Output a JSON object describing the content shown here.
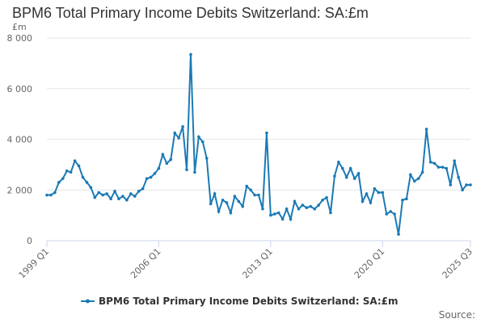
{
  "chart_data": {
    "type": "line",
    "title": "BPM6 Total Primary Income Debits Switzerland: SA:£m",
    "ylabel": "£m",
    "xlabel": "",
    "ylim": [
      0,
      8000
    ],
    "yticks": [
      0,
      2000,
      4000,
      6000,
      8000
    ],
    "ytick_labels": [
      "0",
      "2 000",
      "4 000",
      "6 000",
      "8 000"
    ],
    "xtick_labels": [
      "1999 Q1",
      "2006 Q1",
      "2013 Q1",
      "2020 Q1",
      "2025 Q3"
    ],
    "grid": true,
    "legend_position": "bottom-center",
    "series_color": "#1a7ab6",
    "series": [
      {
        "name": "BPM6 Total Primary Income Debits Switzerland: SA:£m",
        "x": [
          "1999 Q1",
          "1999 Q2",
          "1999 Q3",
          "1999 Q4",
          "2000 Q1",
          "2000 Q2",
          "2000 Q3",
          "2000 Q4",
          "2001 Q1",
          "2001 Q2",
          "2001 Q3",
          "2001 Q4",
          "2002 Q1",
          "2002 Q2",
          "2002 Q3",
          "2002 Q4",
          "2003 Q1",
          "2003 Q2",
          "2003 Q3",
          "2003 Q4",
          "2004 Q1",
          "2004 Q2",
          "2004 Q3",
          "2004 Q4",
          "2005 Q1",
          "2005 Q2",
          "2005 Q3",
          "2005 Q4",
          "2006 Q1",
          "2006 Q2",
          "2006 Q3",
          "2006 Q4",
          "2007 Q1",
          "2007 Q2",
          "2007 Q3",
          "2007 Q4",
          "2008 Q1",
          "2008 Q2",
          "2008 Q3",
          "2008 Q4",
          "2009 Q1",
          "2009 Q2",
          "2009 Q3",
          "2009 Q4",
          "2010 Q1",
          "2010 Q2",
          "2010 Q3",
          "2010 Q4",
          "2011 Q1",
          "2011 Q2",
          "2011 Q3",
          "2011 Q4",
          "2012 Q1",
          "2012 Q2",
          "2012 Q3",
          "2012 Q4",
          "2013 Q1",
          "2013 Q2",
          "2013 Q3",
          "2013 Q4",
          "2014 Q1",
          "2014 Q2",
          "2014 Q3",
          "2014 Q4",
          "2015 Q1",
          "2015 Q2",
          "2015 Q3",
          "2015 Q4",
          "2016 Q1",
          "2016 Q2",
          "2016 Q3",
          "2016 Q4",
          "2017 Q1",
          "2017 Q2",
          "2017 Q3",
          "2017 Q4",
          "2018 Q1",
          "2018 Q2",
          "2018 Q3",
          "2018 Q4",
          "2019 Q1",
          "2019 Q2",
          "2019 Q3",
          "2019 Q4",
          "2020 Q1",
          "2020 Q2",
          "2020 Q3",
          "2020 Q4",
          "2021 Q1",
          "2021 Q2",
          "2021 Q3",
          "2021 Q4",
          "2022 Q1",
          "2022 Q2",
          "2022 Q3",
          "2022 Q4",
          "2023 Q1",
          "2023 Q2",
          "2023 Q3",
          "2023 Q4",
          "2024 Q1",
          "2024 Q2",
          "2024 Q3",
          "2024 Q4",
          "2025 Q1",
          "2025 Q2",
          "2025 Q3"
        ],
        "values": [
          1800,
          1800,
          1900,
          2300,
          2450,
          2750,
          2700,
          3150,
          2950,
          2500,
          2300,
          2100,
          1700,
          1900,
          1800,
          1850,
          1650,
          1950,
          1650,
          1750,
          1600,
          1850,
          1750,
          1950,
          2050,
          2450,
          2500,
          2650,
          2850,
          3400,
          3050,
          3200,
          4250,
          4050,
          4500,
          2800,
          7350,
          2700,
          4100,
          3900,
          3250,
          1450,
          1850,
          1150,
          1600,
          1500,
          1100,
          1750,
          1550,
          1350,
          2150,
          2000,
          1800,
          1800,
          1250,
          4250,
          1000,
          1050,
          1100,
          850,
          1250,
          850,
          1550,
          1250,
          1400,
          1300,
          1350,
          1250,
          1400,
          1600,
          1700,
          1100,
          2550,
          3100,
          2850,
          2500,
          2850,
          2450,
          2650,
          1550,
          1850,
          1500,
          2050,
          1900,
          1900,
          1050,
          1150,
          1050,
          250,
          1600,
          1650,
          2600,
          2350,
          2450,
          2700,
          4400,
          3100,
          3050,
          2900,
          2900,
          2850,
          2200,
          3150,
          2500,
          2000,
          2200,
          2200
        ]
      }
    ]
  },
  "legend": {
    "label": "BPM6 Total Primary Income Debits Switzerland: SA:£m"
  },
  "source": {
    "label": "Source:"
  }
}
